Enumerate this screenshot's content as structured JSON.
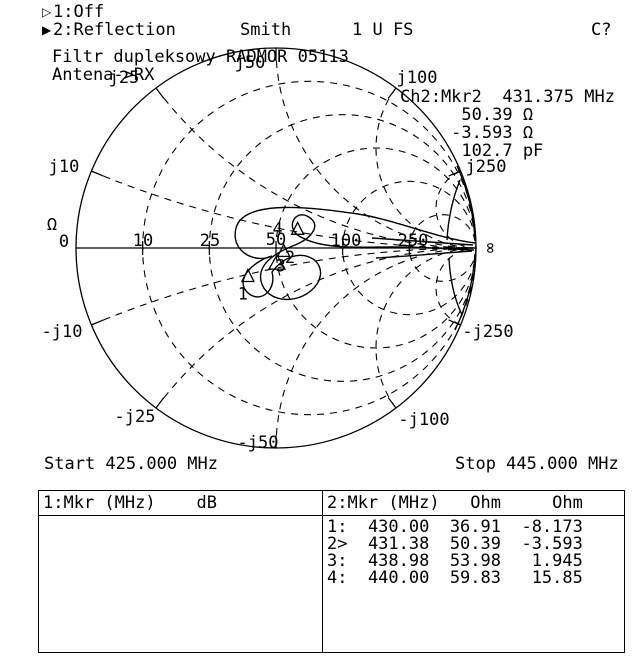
{
  "window": {
    "bg": "#ffffff",
    "fg": "#000000"
  },
  "channels": [
    {
      "arrow": "▷",
      "label": "1:Off"
    },
    {
      "arrow": "▶",
      "label": "2:Reflection",
      "format": "Smith",
      "scale": "1 U FS",
      "status": "C?"
    }
  ],
  "title_lines": [
    "Filtr dupleksowy RADMOR 05113",
    "Antena->RX"
  ],
  "marker_readout": {
    "line1": "Ch2:Mkr2  431.375 MHz",
    "line2": "      50.39 Ω",
    "line3": "     -3.593 Ω",
    "line4": "      102.7 pF"
  },
  "sweep": {
    "start": "Start 425.000 MHz",
    "stop": "Stop 445.000 MHz"
  },
  "smith": {
    "ohm_symbol": "Ω",
    "resistance_labels": [
      "0",
      "10",
      "25",
      "50",
      "100",
      "250",
      "∞"
    ],
    "reactance_labels": [
      "j10",
      "j25",
      "j50",
      "j100",
      "j250",
      "-j10",
      "-j25",
      "-j50",
      "-j100",
      "-j250"
    ]
  },
  "left_table": {
    "header": "1:Mkr (MHz)    dB",
    "rows": []
  },
  "right_table": {
    "header": "2:Mkr (MHz)   Ohm     Ohm",
    "rows": [
      {
        "label": "1:",
        "freq": "430.00",
        "ohm": "36.91",
        "ohm2": "-8.173"
      },
      {
        "label": "2>",
        "freq": "431.38",
        "ohm": "50.39",
        "ohm2": "-3.593"
      },
      {
        "label": "3:",
        "freq": "438.98",
        "ohm": "53.98",
        "ohm2": "1.945"
      },
      {
        "label": "4:",
        "freq": "440.00",
        "ohm": "59.83",
        "ohm2": "15.85"
      }
    ]
  },
  "chart_data": {
    "type": "smith",
    "title": "Filtr dupleksowy RADMOR 05113 / Antena->RX",
    "measurement": "Reflection",
    "format": "Smith",
    "scale": "1 U FS",
    "z0_ohm": 50,
    "start_mhz": 425.0,
    "stop_mhz": 445.0,
    "resistance_grid_ohm": [
      0,
      10,
      25,
      50,
      100,
      250
    ],
    "reactance_grid_ohm": [
      10,
      25,
      50,
      100,
      250,
      -10,
      -25,
      -50,
      -100,
      -250
    ],
    "active_marker": {
      "channel": "Ch2",
      "id": 2,
      "freq": "431.375 MHz",
      "r": "50.39 Ω",
      "x": "-3.593 Ω",
      "c": "102.7 pF"
    },
    "markers": [
      {
        "id": "1",
        "freq_mhz": 430.0,
        "r_ohm": 36.91,
        "x_ohm": -8.173,
        "active": false
      },
      {
        "id": "2",
        "freq_mhz": 431.38,
        "r_ohm": 50.39,
        "x_ohm": -3.593,
        "active": true
      },
      {
        "id": "3",
        "freq_mhz": 438.98,
        "r_ohm": 53.98,
        "x_ohm": 1.945,
        "active": false
      },
      {
        "id": "4",
        "freq_mhz": 440.0,
        "r_ohm": 59.83,
        "x_ohm": 15.85,
        "active": false
      }
    ]
  }
}
